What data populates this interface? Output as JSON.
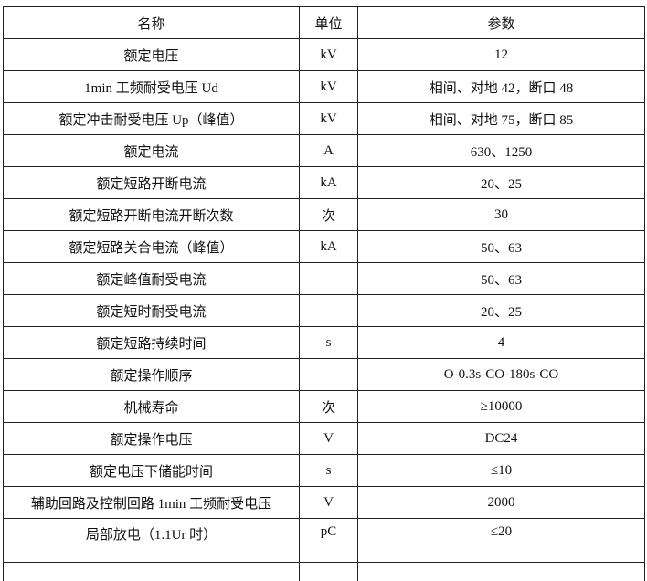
{
  "table": {
    "headers": [
      "名称",
      "单位",
      "参数"
    ],
    "rows": [
      [
        "额定电压",
        "kV",
        "12"
      ],
      [
        "1min 工频耐受电压 Ud",
        "kV",
        "相间、对地 42，断口 48"
      ],
      [
        "额定冲击耐受电压 Up（峰值）",
        "kV",
        "相间、对地 75，断口 85"
      ],
      [
        "额定电流",
        "A",
        "630、1250"
      ],
      [
        "额定短路开断电流",
        "kA",
        "20、25"
      ],
      [
        "额定短路开断电流开断次数",
        "次",
        "30"
      ],
      [
        "额定短路关合电流（峰值）",
        "kA",
        "50、63"
      ],
      [
        "额定峰值耐受电流",
        "",
        "50、63"
      ],
      [
        "额定短时耐受电流",
        "",
        "20、25"
      ],
      [
        "额定短路持续时间",
        "s",
        "4"
      ],
      [
        "额定操作顺序",
        "",
        "O-0.3s-CO-180s-CO"
      ],
      [
        "机械寿命",
        "次",
        "≥10000"
      ],
      [
        "额定操作电压",
        "V",
        "DC24"
      ],
      [
        "额定电压下储能时间",
        "s",
        "≤10"
      ],
      [
        "辅助回路及控制回路 1min 工频耐受电压",
        "V",
        "2000"
      ],
      [
        "局部放电（1.1Ur 时）",
        "pC",
        "≤20"
      ]
    ]
  }
}
